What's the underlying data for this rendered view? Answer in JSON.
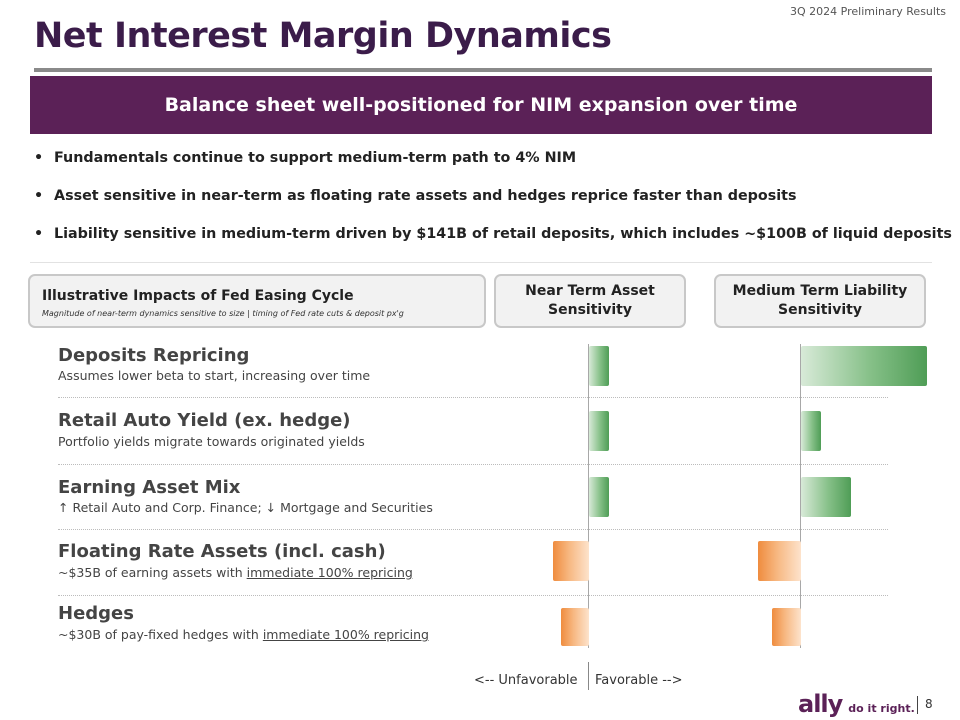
{
  "header": {
    "section_label": "3Q 2024 Preliminary Results",
    "title": "Net Interest Margin Dynamics"
  },
  "banner": {
    "text": "Balance sheet well-positioned for NIM expansion over time"
  },
  "bullets": [
    "Fundamentals continue to support medium-term path to 4% NIM",
    "Asset sensitive in near-term as floating rate assets and hedges reprice faster than deposits",
    "Liability sensitive in medium-term driven by $141B of retail deposits, which includes ~$100B of liquid deposits"
  ],
  "table_header": {
    "title": "Illustrative Impacts of Fed Easing Cycle",
    "subtitle": "Magnitude of near-term dynamics sensitive to size | timing of Fed rate cuts & deposit px'g",
    "near_term": "Near Term Asset Sensitivity",
    "medium_term": "Medium Term Liability Sensitivity"
  },
  "rows": [
    {
      "title": "Deposits Repricing",
      "desc_prefix": "Assumes lower beta to start, increasing over time",
      "desc_underlined": ""
    },
    {
      "title": "Retail Auto Yield (ex. hedge)",
      "desc_prefix": "Portfolio yields migrate towards originated yields",
      "desc_underlined": ""
    },
    {
      "title": "Earning Asset Mix",
      "desc_prefix": "↑ Retail Auto and Corp. Finance; ↓ Mortgage and Securities",
      "desc_underlined": ""
    },
    {
      "title": "Floating Rate Assets (incl. cash)",
      "desc_prefix": "~$35B of earning assets with ",
      "desc_underlined": "immediate 100% repricing"
    },
    {
      "title": "Hedges",
      "desc_prefix": "~$30B of pay-fixed hedges with ",
      "desc_underlined": "immediate 100% repricing"
    }
  ],
  "impact_bars": {
    "note": "",
    "near_term": [
      {
        "direction": "favorable",
        "magnitude": 0.2
      },
      {
        "direction": "favorable",
        "magnitude": 0.2
      },
      {
        "direction": "favorable",
        "magnitude": 0.2
      },
      {
        "direction": "unfavorable",
        "magnitude": 0.36
      },
      {
        "direction": "unfavorable",
        "magnitude": 0.28
      }
    ],
    "medium_term": [
      {
        "direction": "favorable",
        "magnitude": 1.0
      },
      {
        "direction": "favorable",
        "magnitude": 0.16
      },
      {
        "direction": "favorable",
        "magnitude": 0.4
      },
      {
        "direction": "unfavorable",
        "magnitude": 0.34
      },
      {
        "direction": "unfavorable",
        "magnitude": 0.23
      }
    ],
    "colors": {
      "favorable": "#4f9d56",
      "unfavorable": "#ef8c3e"
    }
  },
  "axis_labels": {
    "unfavorable": "<-- Unfavorable",
    "favorable": "Favorable -->"
  },
  "footer": {
    "brand": "ally",
    "slogan": "do it right.",
    "page_number": "8"
  }
}
